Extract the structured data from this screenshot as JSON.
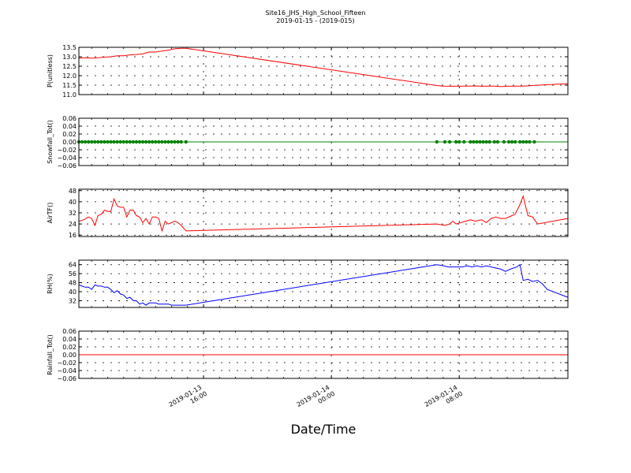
{
  "title": "Site16_JHS_High_School_Fifteen",
  "subtitle": "2019-01-15 - (2019-015)",
  "xlabel": "Date/Time",
  "x_ticks": [
    {
      "x": 38,
      "line1": "2019-01-13",
      "line2": "16:00"
    },
    {
      "x": 46,
      "line1": "2019-01-14",
      "line2": "00:00"
    },
    {
      "x": 54,
      "line1": "2019-01-14",
      "line2": "08:00"
    }
  ],
  "colors": {
    "red": "#ff0000",
    "green": "#008000",
    "blue": "#0000ff"
  },
  "chart_data": [
    {
      "type": "line",
      "ylabel": "P(unitless)",
      "ylim": [
        11.0,
        13.5
      ],
      "yticks": [
        11.0,
        11.5,
        12.0,
        12.5,
        13.0,
        13.5
      ],
      "ytick_labels": [
        "11.0",
        "11.5",
        "12.0",
        "12.5",
        "13.0",
        "13.5"
      ],
      "xlim": [
        30.2,
        60.8
      ],
      "color": "red",
      "series": [
        {
          "x": [
            30.2,
            30.6,
            31.0,
            31.4,
            31.8,
            32.2,
            32.6,
            33.0,
            33.4,
            33.8,
            34.2,
            34.6,
            35.0,
            35.4,
            35.8,
            36.2,
            36.6,
            36.9,
            52.6,
            53.0,
            53.4,
            53.8,
            54.2,
            54.6,
            55.0,
            55.4,
            55.8,
            56.2,
            56.6,
            57.0,
            57.4,
            57.8,
            58.2,
            58.6,
            59.0,
            59.4,
            59.8,
            60.2,
            60.8
          ],
          "y": [
            12.93,
            12.95,
            12.93,
            12.95,
            12.98,
            13.0,
            13.05,
            13.05,
            13.1,
            13.12,
            13.15,
            13.25,
            13.25,
            13.3,
            13.35,
            13.42,
            13.45,
            13.45,
            11.48,
            11.45,
            11.44,
            11.44,
            11.45,
            11.45,
            11.46,
            11.44,
            11.45,
            11.45,
            11.42,
            11.44,
            11.45,
            11.45,
            11.46,
            11.48,
            11.5,
            11.52,
            11.53,
            11.55,
            11.57
          ]
        }
      ]
    },
    {
      "type": "scatter",
      "ylabel": "Snowfall_Tot()",
      "ylim": [
        -0.06,
        0.06
      ],
      "yticks": [
        -0.06,
        -0.04,
        -0.02,
        0.0,
        0.02,
        0.04,
        0.06
      ],
      "ytick_labels": [
        "−0.06",
        "−0.04",
        "−0.02",
        "0.00",
        "0.02",
        "0.04",
        "0.06"
      ],
      "xlim": [
        30.2,
        60.8
      ],
      "color": "green",
      "line_color": "green",
      "series": [
        {
          "x": [
            30.2,
            30.4,
            30.6,
            30.8,
            31.0,
            31.2,
            31.4,
            31.6,
            31.8,
            32.0,
            32.2,
            32.4,
            32.6,
            32.8,
            33.0,
            33.2,
            33.4,
            33.6,
            33.8,
            34.0,
            34.2,
            34.4,
            34.6,
            34.8,
            35.0,
            35.2,
            35.4,
            35.6,
            35.8,
            36.0,
            36.2,
            36.4,
            36.6,
            36.9,
            52.6,
            53.1,
            53.4,
            53.8,
            54.0,
            54.3,
            54.7,
            54.9,
            55.1,
            55.3,
            55.5,
            55.7,
            55.9,
            56.2,
            56.4,
            56.8,
            57.1,
            57.3,
            57.5,
            57.8,
            58.0,
            58.2,
            58.4,
            58.7
          ],
          "y": [
            0,
            0,
            0,
            0,
            0,
            0,
            0,
            0,
            0,
            0,
            0,
            0,
            0,
            0,
            0,
            0,
            0,
            0,
            0,
            0,
            0,
            0,
            0,
            0,
            0,
            0,
            0,
            0,
            0,
            0,
            0,
            0,
            0,
            0,
            0,
            0,
            0,
            0,
            0,
            0,
            0,
            0,
            0,
            0,
            0,
            0,
            0,
            0,
            0,
            0,
            0,
            0,
            0,
            0,
            0,
            0,
            0,
            0
          ]
        }
      ]
    },
    {
      "type": "line",
      "ylabel": "AirTF()",
      "ylim": [
        15,
        49
      ],
      "yticks": [
        16,
        24,
        32,
        40,
        48
      ],
      "ytick_labels": [
        "16",
        "24",
        "32",
        "40",
        "48"
      ],
      "xlim": [
        30.2,
        60.8
      ],
      "color": "red",
      "series": [
        {
          "x": [
            30.2,
            30.5,
            30.8,
            31.0,
            31.2,
            31.4,
            31.6,
            31.8,
            32.0,
            32.2,
            32.4,
            32.6,
            32.8,
            33.0,
            33.2,
            33.4,
            33.6,
            33.8,
            34.0,
            34.2,
            34.4,
            34.6,
            34.8,
            35.0,
            35.2,
            35.4,
            35.6,
            35.8,
            36.0,
            36.2,
            36.4,
            36.6,
            36.9,
            52.6,
            53.1,
            53.4,
            53.6,
            53.8,
            54.1,
            54.4,
            54.7,
            55.0,
            55.4,
            55.7,
            56.0,
            56.3,
            56.6,
            56.9,
            57.3,
            57.5,
            57.8,
            58.0,
            58.3,
            58.6,
            58.9,
            60.8
          ],
          "y": [
            26,
            27,
            29,
            28,
            23,
            30,
            31,
            34,
            33,
            33,
            42,
            37,
            36,
            36,
            29,
            34,
            34,
            30,
            29,
            25,
            28,
            24,
            29,
            29,
            28,
            19,
            26,
            24,
            25,
            26,
            25,
            23,
            19,
            24,
            23,
            24,
            26,
            24,
            25,
            26,
            27,
            26,
            27,
            25,
            28,
            29,
            28,
            28,
            30,
            31,
            38,
            44,
            30,
            29,
            24,
            28
          ]
        }
      ]
    },
    {
      "type": "line",
      "ylabel": "RH(%)",
      "ylim": [
        26,
        68
      ],
      "yticks": [
        32,
        40,
        48,
        56,
        64
      ],
      "ytick_labels": [
        "32",
        "40",
        "48",
        "56",
        "64"
      ],
      "xlim": [
        30.2,
        60.8
      ],
      "color": "blue",
      "series": [
        {
          "x": [
            30.2,
            30.4,
            30.6,
            30.8,
            31.0,
            31.2,
            31.4,
            31.6,
            31.8,
            32.0,
            32.2,
            32.4,
            32.6,
            32.8,
            33.0,
            33.2,
            33.4,
            33.6,
            33.8,
            34.0,
            34.2,
            34.4,
            34.6,
            34.8,
            35.0,
            35.2,
            35.4,
            35.6,
            35.8,
            36.0,
            36.2,
            36.4,
            36.6,
            36.9,
            52.6,
            53.0,
            53.3,
            53.6,
            53.9,
            54.2,
            54.5,
            54.8,
            55.1,
            55.4,
            55.7,
            56.0,
            56.3,
            56.6,
            56.9,
            57.2,
            57.6,
            57.8,
            58.0,
            58.3,
            58.6,
            58.9,
            59.2,
            59.5,
            60.8
          ],
          "y": [
            46,
            45,
            44,
            44,
            42,
            46,
            45,
            45,
            44,
            44,
            42,
            39,
            41,
            38,
            37,
            34,
            35,
            32,
            32,
            29,
            30,
            28,
            30,
            30,
            30,
            29,
            29,
            29,
            29,
            28,
            28,
            28,
            28,
            28,
            64,
            63,
            62,
            62,
            62,
            62,
            63,
            62,
            63,
            62,
            63,
            62,
            61,
            60,
            58,
            60,
            62,
            64,
            50,
            51,
            49,
            50,
            47,
            42,
            35
          ]
        }
      ]
    },
    {
      "type": "line",
      "ylabel": "Rainfall_Tot()",
      "ylim": [
        -0.06,
        0.06
      ],
      "yticks": [
        -0.06,
        -0.04,
        -0.02,
        0.0,
        0.02,
        0.04,
        0.06
      ],
      "ytick_labels": [
        "−0.06",
        "−0.04",
        "−0.02",
        "0.00",
        "0.02",
        "0.04",
        "0.06"
      ],
      "xlim": [
        30.2,
        60.8
      ],
      "color": "red",
      "series": [
        {
          "x": [
            30.2,
            60.8
          ],
          "y": [
            0,
            0
          ]
        }
      ]
    }
  ]
}
